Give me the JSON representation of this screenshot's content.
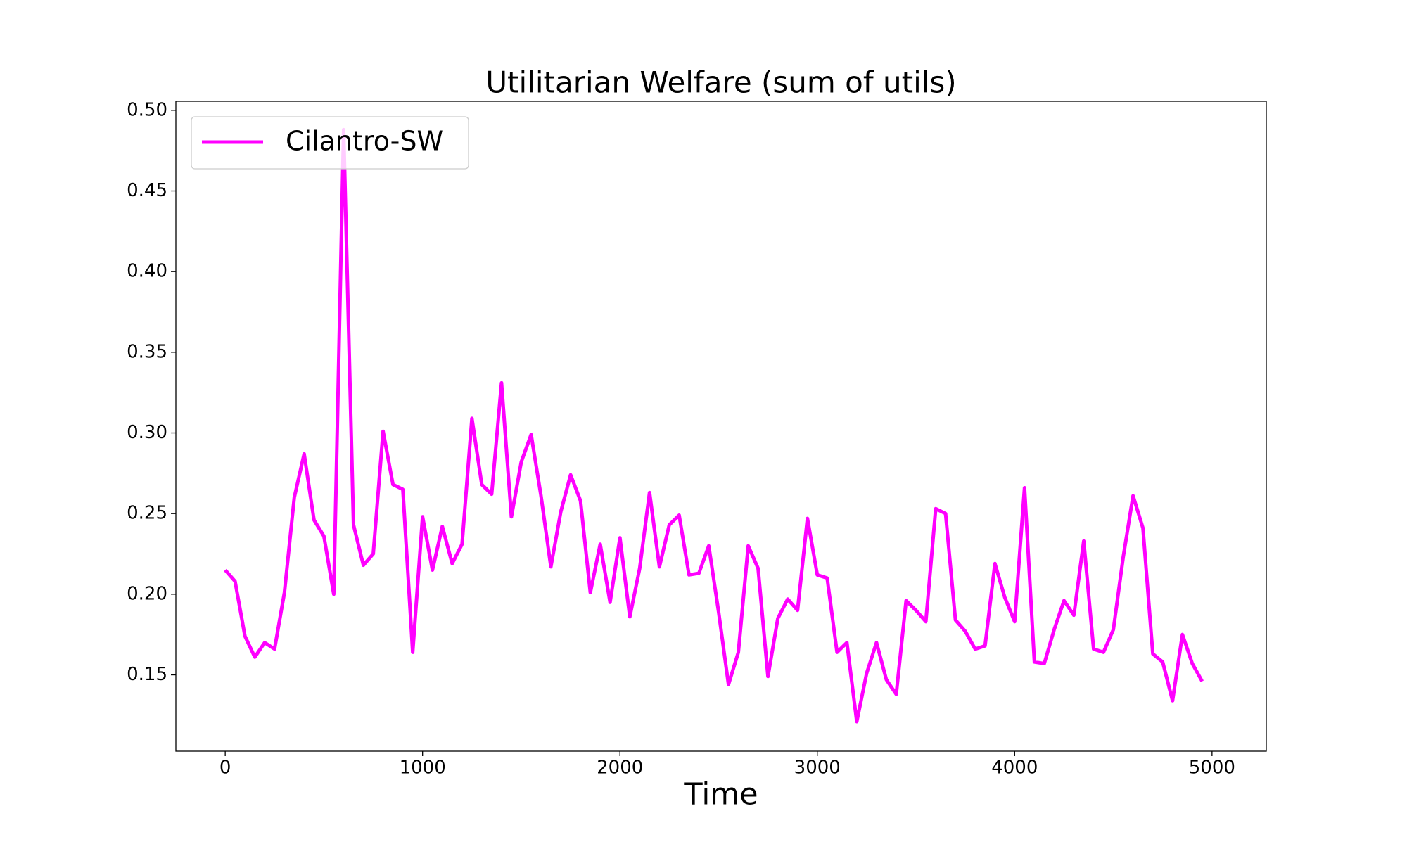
{
  "chart_data": {
    "type": "line",
    "title": "Utilitarian Welfare (sum of utils)",
    "x_label": "Time",
    "x": [
      0,
      50,
      100,
      150,
      200,
      250,
      300,
      350,
      400,
      450,
      500,
      550,
      600,
      650,
      700,
      750,
      800,
      850,
      900,
      950,
      1000,
      1050,
      1100,
      1150,
      1200,
      1250,
      1300,
      1350,
      1400,
      1450,
      1500,
      1550,
      1600,
      1650,
      1700,
      1750,
      1800,
      1850,
      1900,
      1950,
      2000,
      2050,
      2100,
      2150,
      2200,
      2250,
      2300,
      2350,
      2400,
      2450,
      2500,
      2550,
      2600,
      2650,
      2700,
      2750,
      2800,
      2850,
      2900,
      2950,
      3000,
      3050,
      3100,
      3150,
      3200,
      3250,
      3300,
      3350,
      3400,
      3450,
      3500,
      3550,
      3600,
      3650,
      3700,
      3750,
      3800,
      3850,
      3900,
      3950,
      4000,
      4050,
      4100,
      4150,
      4200,
      4250,
      4300,
      4350,
      4400,
      4450,
      4500,
      4550,
      4600,
      4650,
      4700,
      4750,
      4800,
      4850,
      4900,
      4950
    ],
    "series": [
      {
        "name": "Cilantro-SW",
        "color": "#ff00ff",
        "values": [
          0.215,
          0.208,
          0.174,
          0.161,
          0.17,
          0.166,
          0.201,
          0.26,
          0.287,
          0.246,
          0.236,
          0.2,
          0.488,
          0.243,
          0.218,
          0.225,
          0.301,
          0.268,
          0.265,
          0.164,
          0.248,
          0.215,
          0.242,
          0.219,
          0.231,
          0.309,
          0.268,
          0.262,
          0.331,
          0.248,
          0.282,
          0.299,
          0.261,
          0.217,
          0.251,
          0.274,
          0.258,
          0.201,
          0.231,
          0.195,
          0.235,
          0.186,
          0.216,
          0.263,
          0.217,
          0.243,
          0.249,
          0.212,
          0.213,
          0.23,
          0.189,
          0.144,
          0.164,
          0.23,
          0.216,
          0.149,
          0.185,
          0.197,
          0.19,
          0.247,
          0.212,
          0.21,
          0.164,
          0.17,
          0.121,
          0.151,
          0.17,
          0.147,
          0.138,
          0.196,
          0.19,
          0.183,
          0.253,
          0.25,
          0.184,
          0.177,
          0.166,
          0.168,
          0.219,
          0.198,
          0.183,
          0.266,
          0.158,
          0.157,
          0.178,
          0.196,
          0.187,
          0.233,
          0.166,
          0.164,
          0.178,
          0.223,
          0.261,
          0.241,
          0.163,
          0.158,
          0.134,
          0.175,
          0.157,
          0.146
        ]
      }
    ],
    "xlim": [
      -250,
      5275
    ],
    "ylim": [
      0.1027,
      0.5056
    ],
    "xticks": [
      0,
      1000,
      2000,
      3000,
      4000,
      5000
    ],
    "yticks": [
      0.15,
      {
        "value": 0.2,
        "label": "0.20"
      },
      0.25,
      {
        "value": 0.3,
        "label": "0.30"
      },
      0.35,
      {
        "value": 0.4,
        "label": "0.40"
      },
      0.45,
      {
        "value": 0.5,
        "label": "0.50"
      }
    ],
    "grid": false,
    "legend": "upper left"
  }
}
